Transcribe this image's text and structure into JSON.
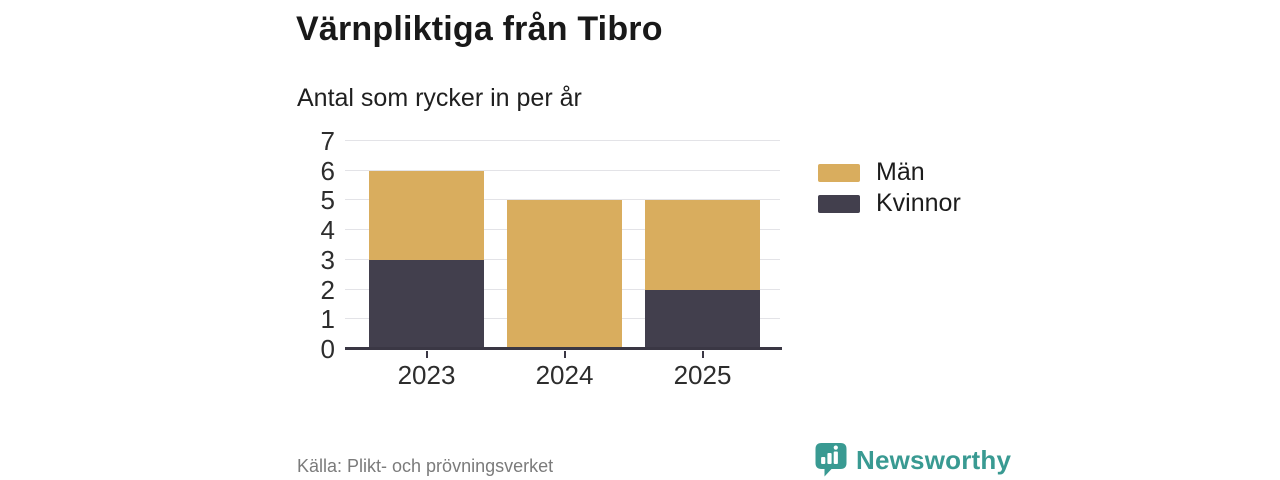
{
  "header": {
    "title": "Värnpliktiga från Tibro",
    "subtitle": "Antal som rycker in per år"
  },
  "footer": {
    "source": "Källa: Plikt- och prövningsverket",
    "brand": "Newsworthy"
  },
  "colors": {
    "men_gold": "#d9ad5e",
    "women_dark": "#423f4d",
    "brand_teal": "#399a92",
    "gridline": "#e3e3e7",
    "axis": "#3a3744",
    "tick_label": "#2d2d2d",
    "source_gray": "#7b7b7b"
  },
  "chart_data": {
    "type": "bar",
    "stacked": true,
    "title": "Värnpliktiga från Tibro",
    "subtitle": "Antal som rycker in per år",
    "categories": [
      "2023",
      "2024",
      "2025"
    ],
    "series": [
      {
        "name": "Män",
        "color": "#d9ad5e",
        "values": [
          3,
          5,
          3
        ]
      },
      {
        "name": "Kvinnor",
        "color": "#423f4d",
        "values": [
          3,
          0,
          2
        ]
      }
    ],
    "stack_totals": [
      6,
      5,
      5
    ],
    "xlabel": "",
    "ylabel": "",
    "ylim": [
      0,
      7
    ],
    "yticks": [
      0,
      1,
      2,
      3,
      4,
      5,
      6,
      7
    ],
    "grid": true,
    "legend_position": "right"
  }
}
